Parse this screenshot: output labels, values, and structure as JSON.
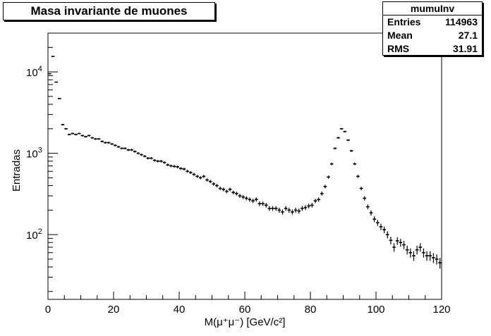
{
  "title": "Masa invariante de muones",
  "stats": {
    "name": "mumuInv",
    "rows": [
      {
        "label": "Entries",
        "value": "114963"
      },
      {
        "label": "Mean",
        "value": "27.1"
      },
      {
        "label": "RMS",
        "value": "31.91"
      }
    ]
  },
  "chart_data": {
    "type": "scatter",
    "style": "histogram-error-bars",
    "xlabel": "M(μ⁺μ⁻) [GeV/c²]",
    "ylabel": "Entradas",
    "xlim": [
      0,
      120
    ],
    "ylim": [
      16,
      30000
    ],
    "ylog": true,
    "x_ticks": [
      "0",
      "20",
      "40",
      "60",
      "80",
      "100",
      "120"
    ],
    "y_ticks": [
      {
        "value": 100,
        "base": "10",
        "exp": "2"
      },
      {
        "value": 1000,
        "base": "10",
        "exp": "3"
      },
      {
        "value": 10000,
        "base": "10",
        "exp": "4"
      }
    ],
    "bin_width": 1,
    "x": [
      0.5,
      1.5,
      2.5,
      3.5,
      4.5,
      5.5,
      6.5,
      7.5,
      8.5,
      9.5,
      10.5,
      11.5,
      12.5,
      13.5,
      14.5,
      15.5,
      16.5,
      17.5,
      18.5,
      19.5,
      20.5,
      21.5,
      22.5,
      23.5,
      24.5,
      25.5,
      26.5,
      27.5,
      28.5,
      29.5,
      30.5,
      31.5,
      32.5,
      33.5,
      34.5,
      35.5,
      36.5,
      37.5,
      38.5,
      39.5,
      40.5,
      41.5,
      42.5,
      43.5,
      44.5,
      45.5,
      46.5,
      47.5,
      48.5,
      49.5,
      50.5,
      51.5,
      52.5,
      53.5,
      54.5,
      55.5,
      56.5,
      57.5,
      58.5,
      59.5,
      60.5,
      61.5,
      62.5,
      63.5,
      64.5,
      65.5,
      66.5,
      67.5,
      68.5,
      69.5,
      70.5,
      71.5,
      72.5,
      73.5,
      74.5,
      75.5,
      76.5,
      77.5,
      78.5,
      79.5,
      80.5,
      81.5,
      82.5,
      83.5,
      84.5,
      85.5,
      86.5,
      87.5,
      88.5,
      89.5,
      90.5,
      91.5,
      92.5,
      93.5,
      94.5,
      95.5,
      96.5,
      97.5,
      98.5,
      99.5,
      100.5,
      101.5,
      102.5,
      103.5,
      104.5,
      105.5,
      106.5,
      107.5,
      108.5,
      109.5,
      110.5,
      111.5,
      112.5,
      113.5,
      114.5,
      115.5,
      116.5,
      117.5,
      118.5,
      119.5
    ],
    "y": [
      9500,
      15500,
      7500,
      4700,
      2250,
      2000,
      1700,
      1750,
      1700,
      1750,
      1650,
      1600,
      1650,
      1550,
      1500,
      1500,
      1400,
      1350,
      1350,
      1300,
      1250,
      1200,
      1150,
      1150,
      1100,
      1100,
      1050,
      1000,
      960,
      920,
      870,
      870,
      820,
      800,
      800,
      770,
      720,
      700,
      690,
      680,
      650,
      640,
      600,
      580,
      550,
      520,
      500,
      520,
      470,
      450,
      420,
      400,
      370,
      360,
      340,
      360,
      330,
      320,
      300,
      290,
      280,
      270,
      260,
      270,
      240,
      240,
      230,
      210,
      210,
      210,
      200,
      190,
      210,
      200,
      190,
      200,
      195,
      210,
      215,
      225,
      230,
      260,
      270,
      320,
      390,
      510,
      740,
      1150,
      1550,
      2000,
      1850,
      1450,
      1070,
      740,
      520,
      370,
      280,
      220,
      185,
      155,
      140,
      125,
      115,
      100,
      85,
      70,
      84,
      80,
      75,
      65,
      60,
      55,
      65,
      70,
      60,
      55,
      55,
      52,
      50,
      45
    ]
  }
}
